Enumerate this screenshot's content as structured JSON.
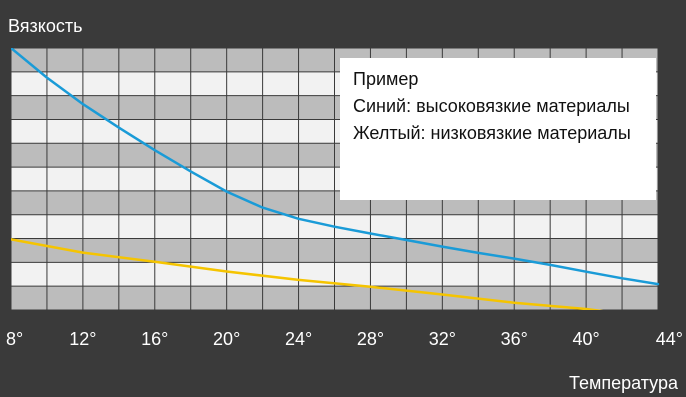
{
  "chart_data": {
    "type": "line",
    "title": "",
    "ylabel": "Вязкость",
    "xlabel": "Температура",
    "x_tick_labels": [
      "8°",
      "12°",
      "16°",
      "20°",
      "24°",
      "28°",
      "32°",
      "36°",
      "40°",
      "44°"
    ],
    "xlim": [
      8,
      44
    ],
    "ylim": [
      0,
      100
    ],
    "grid": true,
    "legend": {
      "position": "top-right",
      "title": "Пример",
      "entries": [
        "Синий: высоковязкие материалы",
        "Желтый: низковязкие материалы"
      ]
    },
    "series": [
      {
        "name": "Синий: высоковязкие материалы",
        "color": "#1a9bd7",
        "x": [
          8,
          10,
          12,
          14,
          16,
          18,
          20,
          22,
          24,
          26,
          28,
          30,
          32,
          34,
          36,
          38,
          40,
          42,
          44
        ],
        "y": [
          100,
          88.7,
          78.6,
          69.6,
          61,
          52.9,
          45.2,
          39.1,
          34.8,
          31.8,
          29.2,
          26.7,
          24.2,
          21.8,
          19.6,
          17.2,
          14.6,
          12.1,
          9.9
        ]
      },
      {
        "name": "Желтый: низковязкие материалы",
        "color": "#f5c400",
        "x": [
          8,
          12,
          16,
          20,
          24,
          28,
          32,
          36,
          40,
          44
        ],
        "y": [
          27,
          21.9,
          18.4,
          14.7,
          11.5,
          8.9,
          5.9,
          2.8,
          0.4,
          -3.2
        ]
      }
    ]
  }
}
